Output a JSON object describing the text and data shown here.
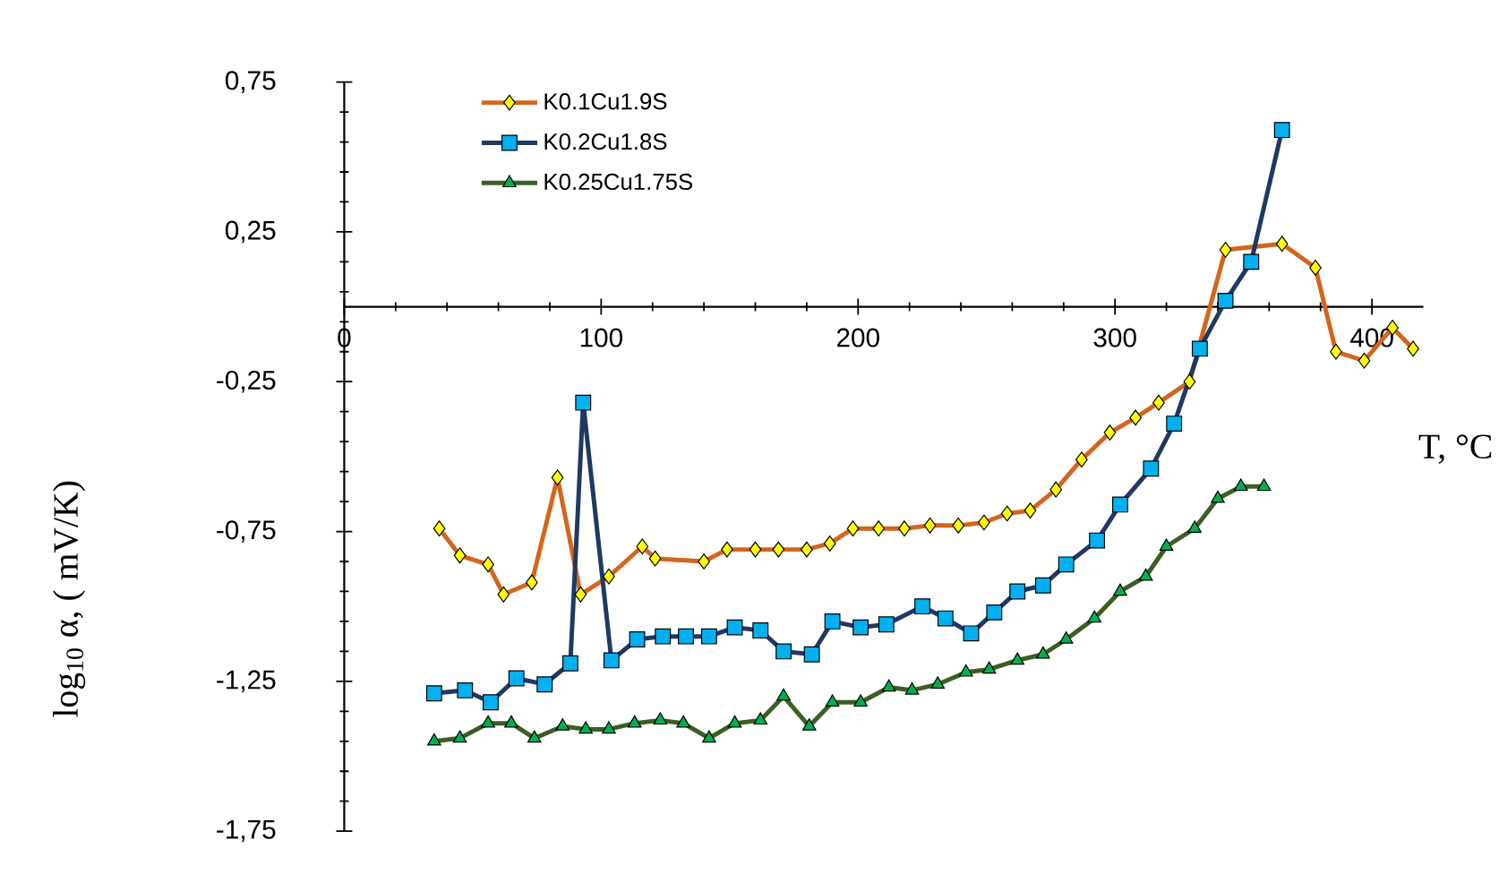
{
  "chart_data": {
    "type": "line",
    "xlabel": "T, °C",
    "ylabel": "log$_{10}$ α, ( mV/K)",
    "xlim": [
      0,
      420
    ],
    "ylim": [
      -1.75,
      0.75
    ],
    "xticks": [
      0,
      100,
      200,
      300,
      400
    ],
    "yticks": [
      {
        "value": 0.75,
        "label": "0,75"
      },
      {
        "value": 0.25,
        "label": "0,25"
      },
      {
        "value": -0.25,
        "label": "-0,25"
      },
      {
        "value": -0.75,
        "label": "-0,75"
      },
      {
        "value": -1.25,
        "label": "-1,25"
      },
      {
        "value": -1.75,
        "label": "-1,75"
      }
    ],
    "grid": false,
    "legend": "top left",
    "line_style": "solid",
    "series": [
      {
        "name": "K0.1Cu1.9S",
        "color": "#d4651c",
        "marker": "diamond",
        "colors": [
          "#ffff00",
          "#ffff00",
          "#ffff00",
          "#ffff00",
          "#ffff00",
          "#ffff00",
          "#ffff00",
          "#ffff00",
          "#ffff00",
          "#ffff00",
          "#ffff00",
          "#ffff00",
          "#ffff00",
          "#ffff00",
          "#ffff00",
          "#ffff00",
          "#ffff00",
          "#ffff00",
          "#ffff00",
          "#ffff00",
          "#ffff00",
          "#ffff00",
          "#ffff00",
          "#ffff00",
          "#ffff00",
          "#ffff00",
          "#ffff00",
          "#ffff00",
          "#ffff00",
          "#ffff00",
          "#ffff00",
          "#ffff00",
          "#ffff00",
          "#ffff00",
          "#ffff00",
          "#ffff00",
          "#ffff00"
        ],
        "x": [
          37,
          45,
          56,
          62,
          73,
          83,
          92,
          103,
          116,
          121,
          140,
          149,
          160,
          169,
          180,
          189,
          198,
          208,
          218,
          228,
          239,
          249,
          258,
          267,
          277,
          287,
          298,
          308,
          317,
          329,
          343,
          365,
          378,
          386,
          397,
          408,
          416
        ],
        "values": [
          -0.74,
          -0.83,
          -0.86,
          -0.96,
          -0.92,
          -0.57,
          -0.96,
          -0.9,
          -0.8,
          -0.84,
          -0.85,
          -0.81,
          -0.81,
          -0.81,
          -0.81,
          -0.79,
          -0.74,
          -0.74,
          -0.74,
          -0.73,
          -0.73,
          -0.72,
          -0.69,
          -0.68,
          -0.61,
          -0.51,
          -0.42,
          -0.37,
          -0.32,
          -0.25,
          0.19,
          0.21,
          0.13,
          -0.15,
          -0.18,
          -0.07,
          -0.14
        ]
      },
      {
        "name": "K0.2Cu1.8S",
        "color": "#1f3864",
        "marker": "square",
        "colors": [
          "#00b0f0",
          "#00b0f0",
          "#00b0f0",
          "#00b0f0",
          "#00b0f0",
          "#00b0f0",
          "#00b0f0",
          "#00b0f0",
          "#00b0f0",
          "#00b0f0",
          "#00b0f0",
          "#00b0f0",
          "#00b0f0",
          "#00b0f0",
          "#00b0f0",
          "#00b0f0",
          "#00b0f0",
          "#00b0f0",
          "#00b0f0",
          "#00b0f0",
          "#00b0f0",
          "#00b0f0",
          "#00b0f0",
          "#00b0f0",
          "#00b0f0",
          "#00b0f0",
          "#00b0f0",
          "#00b0f0",
          "#00b0f0",
          "#00b0f0",
          "#00b0f0",
          "#00b0f0",
          "#00b0f0",
          "#00b0f0"
        ],
        "x": [
          35,
          47,
          57,
          67,
          78,
          88,
          93,
          104,
          114,
          124,
          133,
          142,
          152,
          162,
          171,
          182,
          190,
          201,
          211,
          225,
          234,
          244,
          253,
          262,
          272,
          281,
          293,
          302,
          314,
          323,
          333,
          343,
          353,
          365
        ],
        "values": [
          -1.29,
          -1.28,
          -1.32,
          -1.24,
          -1.26,
          -1.19,
          -0.32,
          -1.18,
          -1.11,
          -1.1,
          -1.1,
          -1.1,
          -1.07,
          -1.08,
          -1.15,
          -1.16,
          -1.05,
          -1.07,
          -1.06,
          -1.0,
          -1.04,
          -1.09,
          -1.02,
          -0.95,
          -0.93,
          -0.86,
          -0.78,
          -0.66,
          -0.54,
          -0.39,
          -0.14,
          0.02,
          0.15,
          0.59
        ]
      },
      {
        "name": "K0.25Cu1.75S",
        "color": "#3a5e24",
        "marker": "triangle",
        "colors": [
          "#00b050",
          "#00b050",
          "#00b050",
          "#00b050",
          "#00b050",
          "#00b050",
          "#00b050",
          "#00b050",
          "#00b050",
          "#00b050",
          "#00b050",
          "#00b050",
          "#00b050",
          "#00b050",
          "#00b050",
          "#00b050",
          "#00b050",
          "#00b050",
          "#00b050",
          "#00b050",
          "#00b050",
          "#00b050",
          "#00b050",
          "#00b050",
          "#00b050",
          "#00b050",
          "#00b050",
          "#00b050",
          "#00b050",
          "#00b050",
          "#00b050",
          "#00b050",
          "#00b050",
          "#00b050"
        ],
        "x": [
          35,
          45,
          56,
          65,
          74,
          85,
          94,
          103,
          113,
          123,
          132,
          142,
          152,
          162,
          171,
          181,
          190,
          201,
          212,
          221,
          231,
          242,
          251,
          262,
          272,
          281,
          292,
          302,
          312,
          320,
          331,
          340,
          349,
          358
        ],
        "values": [
          -1.45,
          -1.44,
          -1.39,
          -1.39,
          -1.44,
          -1.4,
          -1.41,
          -1.41,
          -1.39,
          -1.38,
          -1.39,
          -1.44,
          -1.39,
          -1.38,
          -1.3,
          -1.4,
          -1.32,
          -1.32,
          -1.27,
          -1.28,
          -1.26,
          -1.22,
          -1.21,
          -1.18,
          -1.16,
          -1.11,
          -1.04,
          -0.95,
          -0.9,
          -0.8,
          -0.74,
          -0.64,
          -0.6,
          -0.6
        ]
      }
    ]
  }
}
